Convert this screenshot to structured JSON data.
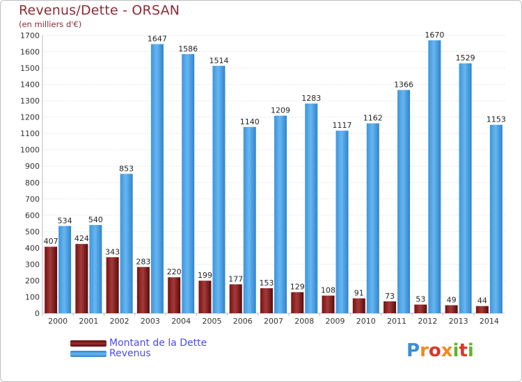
{
  "chart_data": {
    "type": "bar",
    "title": "Revenus/Dette - ORSAN",
    "subtitle": "(en milliers d'€)",
    "categories": [
      "2000",
      "2001",
      "2002",
      "2003",
      "2004",
      "2005",
      "2006",
      "2007",
      "2008",
      "2009",
      "2010",
      "2011",
      "2012",
      "2013",
      "2014"
    ],
    "series": [
      {
        "name": "Montant de la Dette",
        "color": "#8b1a1a",
        "values": [
          407,
          424,
          343,
          283,
          220,
          199,
          177,
          153,
          129,
          108,
          91,
          73,
          53,
          49,
          44
        ]
      },
      {
        "name": "Revenus",
        "color": "#4aa3e8",
        "values": [
          534,
          540,
          853,
          1647,
          1586,
          1514,
          1140,
          1209,
          1283,
          1117,
          1162,
          1366,
          1670,
          1529,
          1153
        ]
      }
    ],
    "yticks": [
      0,
      100,
      200,
      300,
      400,
      500,
      600,
      700,
      800,
      900,
      1000,
      1100,
      1200,
      1300,
      1400,
      1500,
      1600,
      1700
    ],
    "ylim": [
      0,
      1700
    ],
    "grid": true,
    "legend_position": "bottom-left"
  },
  "logo_text": "Proxiti"
}
